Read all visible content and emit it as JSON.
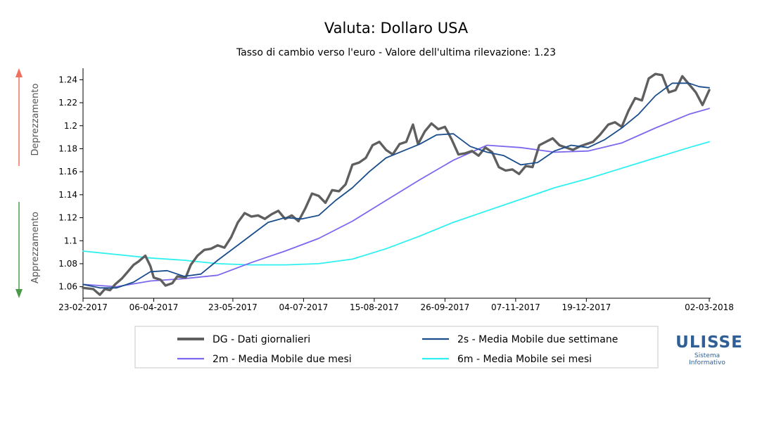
{
  "chart_data": {
    "type": "line",
    "title": "Valuta: Dollaro USA",
    "subtitle": "Tasso di cambio verso l'euro - Valore dell'ultima rilevazione: 1.23",
    "side_labels": {
      "top": "Deprezzamento",
      "bottom": "Apprezzamento"
    },
    "colors": {
      "arrow_up": "#f07060",
      "arrow_down": "#4a9a4a"
    },
    "x_ticks": [
      "23-02-2017",
      "06-04-2017",
      "23-05-2017",
      "04-07-2017",
      "15-08-2017",
      "26-09-2017",
      "07-11-2017",
      "19-12-2017",
      "02-03-2018"
    ],
    "y_ticks": [
      "1.06",
      "1.08",
      "1.1",
      "1.12",
      "1.14",
      "1.16",
      "1.18",
      "1.2",
      "1.22",
      "1.24"
    ],
    "ylim": [
      1.05,
      1.25
    ],
    "xlim": [
      "2017-02-23",
      "2018-03-02"
    ],
    "series": [
      {
        "key": "DG",
        "name": "DG - Dati giornalieri",
        "color": "#5f5f5f",
        "points": [
          [
            "2017-02-23",
            1.059
          ],
          [
            "2017-03-01",
            1.058
          ],
          [
            "2017-03-05",
            1.053
          ],
          [
            "2017-03-08",
            1.058
          ],
          [
            "2017-03-11",
            1.057
          ],
          [
            "2017-03-14",
            1.062
          ],
          [
            "2017-03-18",
            1.067
          ],
          [
            "2017-03-21",
            1.072
          ],
          [
            "2017-03-25",
            1.079
          ],
          [
            "2017-03-28",
            1.082
          ],
          [
            "2017-04-01",
            1.087
          ],
          [
            "2017-04-04",
            1.078
          ],
          [
            "2017-04-06",
            1.068
          ],
          [
            "2017-04-10",
            1.066
          ],
          [
            "2017-04-13",
            1.061
          ],
          [
            "2017-04-17",
            1.063
          ],
          [
            "2017-04-20",
            1.069
          ],
          [
            "2017-04-25",
            1.068
          ],
          [
            "2017-04-28",
            1.079
          ],
          [
            "2017-05-02",
            1.087
          ],
          [
            "2017-05-06",
            1.092
          ],
          [
            "2017-05-10",
            1.093
          ],
          [
            "2017-05-14",
            1.096
          ],
          [
            "2017-05-18",
            1.094
          ],
          [
            "2017-05-22",
            1.103
          ],
          [
            "2017-05-26",
            1.116
          ],
          [
            "2017-05-30",
            1.124
          ],
          [
            "2017-06-03",
            1.121
          ],
          [
            "2017-06-07",
            1.122
          ],
          [
            "2017-06-11",
            1.119
          ],
          [
            "2017-06-15",
            1.123
          ],
          [
            "2017-06-19",
            1.126
          ],
          [
            "2017-06-23",
            1.119
          ],
          [
            "2017-06-27",
            1.122
          ],
          [
            "2017-07-01",
            1.117
          ],
          [
            "2017-07-05",
            1.128
          ],
          [
            "2017-07-09",
            1.141
          ],
          [
            "2017-07-13",
            1.139
          ],
          [
            "2017-07-17",
            1.133
          ],
          [
            "2017-07-21",
            1.144
          ],
          [
            "2017-07-25",
            1.143
          ],
          [
            "2017-07-29",
            1.149
          ],
          [
            "2017-08-02",
            1.166
          ],
          [
            "2017-08-06",
            1.168
          ],
          [
            "2017-08-10",
            1.172
          ],
          [
            "2017-08-14",
            1.183
          ],
          [
            "2017-08-18",
            1.186
          ],
          [
            "2017-08-22",
            1.179
          ],
          [
            "2017-08-26",
            1.175
          ],
          [
            "2017-08-30",
            1.184
          ],
          [
            "2017-09-03",
            1.186
          ],
          [
            "2017-09-07",
            1.201
          ],
          [
            "2017-09-10",
            1.184
          ],
          [
            "2017-09-14",
            1.195
          ],
          [
            "2017-09-18",
            1.202
          ],
          [
            "2017-09-22",
            1.197
          ],
          [
            "2017-09-26",
            1.199
          ],
          [
            "2017-09-30",
            1.188
          ],
          [
            "2017-10-04",
            1.175
          ],
          [
            "2017-10-08",
            1.176
          ],
          [
            "2017-10-12",
            1.178
          ],
          [
            "2017-10-16",
            1.174
          ],
          [
            "2017-10-20",
            1.181
          ],
          [
            "2017-10-24",
            1.177
          ],
          [
            "2017-10-28",
            1.164
          ],
          [
            "2017-11-01",
            1.161
          ],
          [
            "2017-11-05",
            1.162
          ],
          [
            "2017-11-09",
            1.158
          ],
          [
            "2017-11-13",
            1.165
          ],
          [
            "2017-11-17",
            1.164
          ],
          [
            "2017-11-21",
            1.183
          ],
          [
            "2017-11-25",
            1.186
          ],
          [
            "2017-11-29",
            1.189
          ],
          [
            "2017-12-03",
            1.183
          ],
          [
            "2017-12-07",
            1.181
          ],
          [
            "2017-12-11",
            1.179
          ],
          [
            "2017-12-15",
            1.182
          ],
          [
            "2017-12-19",
            1.184
          ],
          [
            "2017-12-23",
            1.186
          ],
          [
            "2017-12-27",
            1.192
          ],
          [
            "2018-01-01",
            1.201
          ],
          [
            "2018-01-05",
            1.203
          ],
          [
            "2018-01-09",
            1.199
          ],
          [
            "2018-01-13",
            1.213
          ],
          [
            "2018-01-17",
            1.224
          ],
          [
            "2018-01-21",
            1.222
          ],
          [
            "2018-01-25",
            1.241
          ],
          [
            "2018-01-29",
            1.245
          ],
          [
            "2018-02-02",
            1.244
          ],
          [
            "2018-02-06",
            1.229
          ],
          [
            "2018-02-10",
            1.231
          ],
          [
            "2018-02-14",
            1.243
          ],
          [
            "2018-02-18",
            1.236
          ],
          [
            "2018-02-22",
            1.229
          ],
          [
            "2018-02-26",
            1.218
          ],
          [
            "2018-03-02",
            1.231
          ]
        ]
      },
      {
        "key": "2s",
        "name": "2s - Media Mobile due settimane",
        "color": "#1a4d8c",
        "points": [
          [
            "2017-02-23",
            1.062
          ],
          [
            "2017-03-05",
            1.059
          ],
          [
            "2017-03-15",
            1.059
          ],
          [
            "2017-03-25",
            1.064
          ],
          [
            "2017-04-04",
            1.073
          ],
          [
            "2017-04-14",
            1.074
          ],
          [
            "2017-04-24",
            1.069
          ],
          [
            "2017-05-04",
            1.071
          ],
          [
            "2017-05-14",
            1.083
          ],
          [
            "2017-05-24",
            1.094
          ],
          [
            "2017-06-03",
            1.105
          ],
          [
            "2017-06-13",
            1.116
          ],
          [
            "2017-06-23",
            1.12
          ],
          [
            "2017-07-03",
            1.119
          ],
          [
            "2017-07-13",
            1.122
          ],
          [
            "2017-07-23",
            1.135
          ],
          [
            "2017-08-02",
            1.146
          ],
          [
            "2017-08-12",
            1.16
          ],
          [
            "2017-08-22",
            1.172
          ],
          [
            "2017-09-01",
            1.178
          ],
          [
            "2017-09-11",
            1.184
          ],
          [
            "2017-09-21",
            1.192
          ],
          [
            "2017-10-01",
            1.193
          ],
          [
            "2017-10-11",
            1.182
          ],
          [
            "2017-10-21",
            1.177
          ],
          [
            "2017-10-31",
            1.174
          ],
          [
            "2017-11-10",
            1.166
          ],
          [
            "2017-11-20",
            1.168
          ],
          [
            "2017-11-30",
            1.178
          ],
          [
            "2017-12-10",
            1.183
          ],
          [
            "2017-12-20",
            1.181
          ],
          [
            "2017-12-30",
            1.188
          ],
          [
            "2018-01-09",
            1.198
          ],
          [
            "2018-01-19",
            1.21
          ],
          [
            "2018-01-29",
            1.226
          ],
          [
            "2018-02-08",
            1.237
          ],
          [
            "2018-02-18",
            1.237
          ],
          [
            "2018-02-24",
            1.234
          ],
          [
            "2018-03-02",
            1.233
          ]
        ]
      },
      {
        "key": "2m",
        "name": "2m - Media Mobile due mesi",
        "color": "#7b68ee",
        "points": [
          [
            "2017-02-23",
            1.062
          ],
          [
            "2017-03-15",
            1.06
          ],
          [
            "2017-04-04",
            1.065
          ],
          [
            "2017-04-24",
            1.067
          ],
          [
            "2017-05-14",
            1.07
          ],
          [
            "2017-06-03",
            1.081
          ],
          [
            "2017-06-23",
            1.091
          ],
          [
            "2017-07-13",
            1.102
          ],
          [
            "2017-08-02",
            1.117
          ],
          [
            "2017-08-22",
            1.135
          ],
          [
            "2017-09-11",
            1.153
          ],
          [
            "2017-10-01",
            1.17
          ],
          [
            "2017-10-21",
            1.183
          ],
          [
            "2017-11-10",
            1.181
          ],
          [
            "2017-11-30",
            1.177
          ],
          [
            "2017-12-20",
            1.178
          ],
          [
            "2018-01-09",
            1.185
          ],
          [
            "2018-01-29",
            1.198
          ],
          [
            "2018-02-18",
            1.21
          ],
          [
            "2018-03-02",
            1.215
          ]
        ]
      },
      {
        "key": "6m",
        "name": "6m - Media Mobile sei mesi",
        "color": "#2ef0f0",
        "points": [
          [
            "2017-02-23",
            1.091
          ],
          [
            "2017-03-15",
            1.088
          ],
          [
            "2017-04-04",
            1.085
          ],
          [
            "2017-04-24",
            1.083
          ],
          [
            "2017-05-14",
            1.08
          ],
          [
            "2017-06-03",
            1.079
          ],
          [
            "2017-06-23",
            1.079
          ],
          [
            "2017-07-13",
            1.08
          ],
          [
            "2017-08-02",
            1.084
          ],
          [
            "2017-08-22",
            1.093
          ],
          [
            "2017-09-11",
            1.104
          ],
          [
            "2017-10-01",
            1.116
          ],
          [
            "2017-10-21",
            1.126
          ],
          [
            "2017-11-10",
            1.136
          ],
          [
            "2017-11-30",
            1.146
          ],
          [
            "2017-12-20",
            1.154
          ],
          [
            "2018-01-09",
            1.163
          ],
          [
            "2018-01-29",
            1.172
          ],
          [
            "2018-02-18",
            1.181
          ],
          [
            "2018-03-02",
            1.186
          ]
        ]
      }
    ],
    "legend_order": [
      "DG",
      "2s",
      "2m",
      "6m"
    ]
  },
  "logo": {
    "name": "ULISSE",
    "sub1": "Sistema",
    "sub2": "Informativo"
  }
}
